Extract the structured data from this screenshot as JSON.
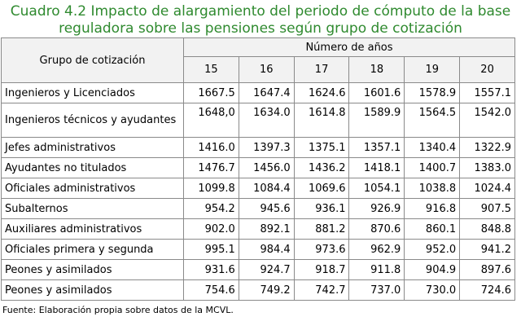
{
  "title": {
    "line1": "Cuadro 4.2 Impacto de alargamiento del periodo de cómputo de la base",
    "line2": "reguladora sobre las pensiones según grupo de cotización"
  },
  "table": {
    "group_header": "Grupo de cotización",
    "years_header": "Número de años",
    "years": [
      "15",
      "16",
      "17",
      "18",
      "19",
      "20"
    ],
    "rows": [
      {
        "label": "Ingenieros y Licenciados",
        "values": [
          "1667.5",
          "1647.4",
          "1624.6",
          "1601.6",
          "1578.9",
          "1557.1"
        ]
      },
      {
        "label": "Ingenieros técnicos y ayudantes",
        "values": [
          "1648,0",
          "1634.0",
          "1614.8",
          "1589.9",
          "1564.5",
          "1542.0"
        ]
      },
      {
        "label": "Jefes administrativos",
        "values": [
          "1416.0",
          "1397.3",
          "1375.1",
          "1357.1",
          "1340.4",
          "1322.9"
        ]
      },
      {
        "label": "Ayudantes no titulados",
        "values": [
          "1476.7",
          "1456.0",
          "1436.2",
          "1418.1",
          "1400.7",
          "1383.0"
        ]
      },
      {
        "label": "Oficiales administrativos",
        "values": [
          "1099.8",
          "1084.4",
          "1069.6",
          "1054.1",
          "1038.8",
          "1024.4"
        ]
      },
      {
        "label": "Subalternos",
        "values": [
          "954.2",
          "945.6",
          "936.1",
          "926.9",
          "916.8",
          "907.5"
        ]
      },
      {
        "label": "Auxiliares administrativos",
        "values": [
          "902.0",
          "892.1",
          "881.2",
          "870.6",
          "860.1",
          "848.8"
        ]
      },
      {
        "label": "Oficiales primera y segunda",
        "values": [
          "995.1",
          "984.4",
          "973.6",
          "962.9",
          "952.0",
          "941.2"
        ]
      },
      {
        "label": "Peones y asimilados",
        "values": [
          "931.6",
          "924.7",
          "918.7",
          "911.8",
          "904.9",
          "897.6"
        ]
      },
      {
        "label": "Peones y asimilados",
        "values": [
          "754.6",
          "749.2",
          "742.7",
          "737.0",
          "730.0",
          "724.6"
        ]
      }
    ]
  },
  "source": "Fuente: Elaboración propia sobre datos de la MCVL."
}
